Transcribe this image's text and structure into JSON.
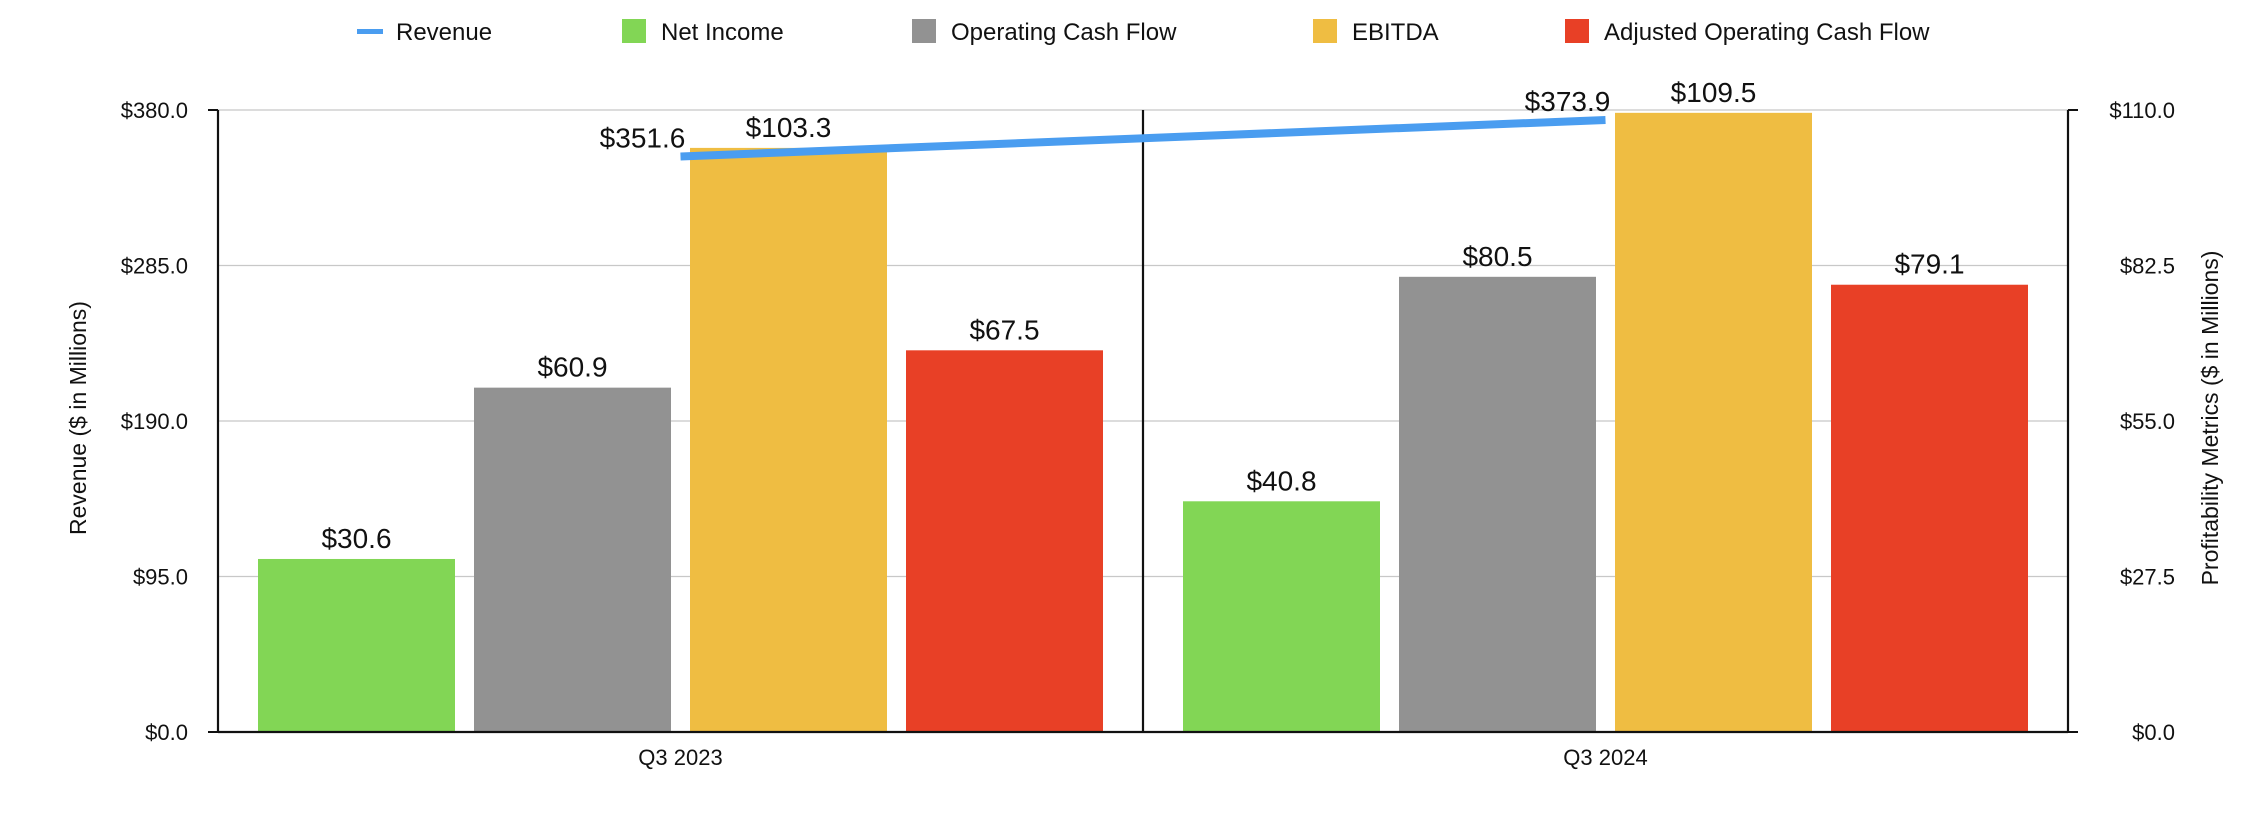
{
  "chart_data": {
    "type": "bar",
    "categories": [
      "Q3 2023",
      "Q3 2024"
    ],
    "series": [
      {
        "name": "Net Income",
        "axis": "right",
        "color": "#82d655",
        "values": [
          30.6,
          40.8
        ],
        "labels": [
          "$30.6",
          "$40.8"
        ]
      },
      {
        "name": "Operating Cash Flow",
        "axis": "right",
        "color": "#929292",
        "values": [
          60.9,
          80.5
        ],
        "labels": [
          "$60.9",
          "$80.5"
        ]
      },
      {
        "name": "EBITDA",
        "axis": "right",
        "color": "#efbd42",
        "values": [
          103.3,
          109.5
        ],
        "labels": [
          "$103.3",
          "$109.5"
        ]
      },
      {
        "name": "Adjusted Operating Cash Flow",
        "axis": "right",
        "color": "#e84026",
        "values": [
          67.5,
          79.1
        ],
        "labels": [
          "$67.5",
          "$79.1"
        ]
      }
    ],
    "line": {
      "name": "Revenue",
      "axis": "left",
      "color": "#4a9df0",
      "values": [
        351.6,
        373.9
      ],
      "labels": [
        "$351.6",
        "$373.9"
      ]
    },
    "legend": {
      "placement": "top",
      "order": [
        "Revenue",
        "Net Income",
        "Operating Cash Flow",
        "EBITDA",
        "Adjusted Operating Cash Flow"
      ]
    },
    "left_axis": {
      "label": "Revenue ($ in Millions)",
      "range": [
        0,
        380
      ],
      "ticks": [
        0,
        95,
        190,
        285,
        380
      ],
      "tick_labels": [
        "$0.0",
        "$95.0",
        "$190.0",
        "$285.0",
        "$380.0"
      ]
    },
    "right_axis": {
      "label": "Profitability Metrics ($ in Millions)",
      "range": [
        0,
        110
      ],
      "ticks": [
        0,
        27.5,
        55,
        82.5,
        110
      ],
      "tick_labels": [
        "$0.0",
        "$27.5",
        "$55.0",
        "$82.5",
        "$110.0"
      ]
    },
    "grid": true
  }
}
